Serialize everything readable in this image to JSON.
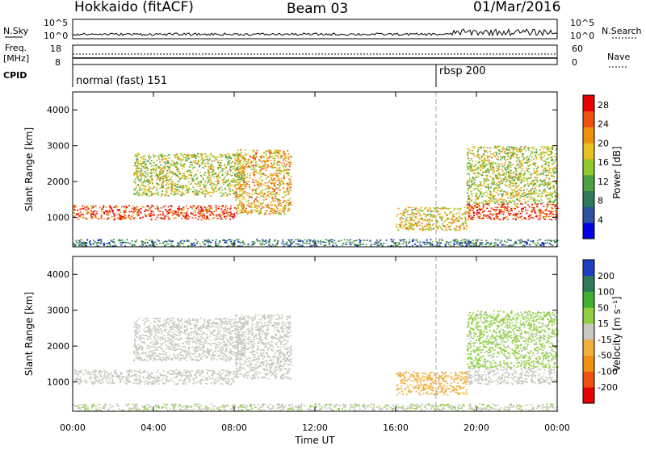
{
  "header": {
    "left": "Hokkaido (fitACF)",
    "center": "Beam 03",
    "right": "01/Mar/2016"
  },
  "top_panels": {
    "nsky_label": "N.Sky",
    "nsearch_label": "N.Search",
    "log_ticks_left": [
      "10^5",
      "10^0"
    ],
    "log_ticks_right": [
      "10^5",
      "10^0"
    ],
    "freq_label_line1": "Freq.",
    "freq_label_line2": "[MHz]",
    "freq_ticks": [
      "18",
      "8"
    ],
    "nave_label": "Nave",
    "nave_ticks": [
      "60",
      "0"
    ],
    "cpid_label": "CPID",
    "cpid_modes": [
      {
        "label": "normal (fast) 151",
        "start_hour": 0
      },
      {
        "label": "rbsp 200",
        "start_hour": 18
      }
    ]
  },
  "chart_data": [
    {
      "type": "heatmap",
      "ylabel": "Slant Range [km]",
      "xlabel": "Time UT",
      "xlim": [
        0,
        24
      ],
      "ylim": [
        180,
        4500
      ],
      "x_ticks": [
        "00:00",
        "04:00",
        "08:00",
        "12:00",
        "16:00",
        "20:00",
        "00:00"
      ],
      "y_ticks": [
        "1000",
        "2000",
        "3000",
        "4000"
      ],
      "colorbar": {
        "label": "Power [dB]",
        "range": [
          0,
          30
        ],
        "ticks": [
          "28",
          "24",
          "20",
          "16",
          "12",
          "8",
          "4"
        ],
        "colors": [
          "#0000e0",
          "#3050a0",
          "#2f7a5a",
          "#4fa040",
          "#90c830",
          "#e8c020",
          "#f09010",
          "#f05010",
          "#e80000"
        ]
      },
      "features": [
        {
          "x": [
            0.0,
            8.0
          ],
          "y": [
            950,
            1350
          ],
          "value": 26
        },
        {
          "x": [
            8.0,
            10.8
          ],
          "y": [
            1100,
            2900
          ],
          "value": 20
        },
        {
          "x": [
            3.0,
            8.5
          ],
          "y": [
            1600,
            2800
          ],
          "value": 16
        },
        {
          "x": [
            16.0,
            19.5
          ],
          "y": [
            650,
            1300
          ],
          "value": 18
        },
        {
          "x": [
            19.5,
            24.0
          ],
          "y": [
            950,
            1400
          ],
          "value": 26
        },
        {
          "x": [
            19.5,
            24.0
          ],
          "y": [
            1400,
            3000
          ],
          "value": 16
        },
        {
          "x": [
            0.0,
            24.0
          ],
          "y": [
            200,
            400
          ],
          "value": 8
        }
      ]
    },
    {
      "type": "heatmap",
      "ylabel": "Slant Range [km]",
      "xlabel": "Time UT",
      "xlim": [
        0,
        24
      ],
      "ylim": [
        180,
        4500
      ],
      "x_ticks": [
        "00:00",
        "04:00",
        "08:00",
        "12:00",
        "16:00",
        "20:00",
        "00:00"
      ],
      "y_ticks": [
        "1000",
        "2000",
        "3000",
        "4000"
      ],
      "colorbar": {
        "label": "Velocity [m s⁻¹]",
        "range": [
          -250,
          250
        ],
        "ticks": [
          "200",
          "100",
          "50",
          "15",
          "-15",
          "-50",
          "-100",
          "-200"
        ],
        "colors": [
          "#e80000",
          "#f05010",
          "#f09010",
          "#f0b040",
          "#c8c8c0",
          "#90d040",
          "#40b030",
          "#2f7a5a",
          "#2040c0"
        ]
      },
      "features": [
        {
          "x": [
            0.0,
            8.0
          ],
          "y": [
            950,
            1350
          ],
          "value": 0
        },
        {
          "x": [
            8.0,
            10.8
          ],
          "y": [
            1100,
            2900
          ],
          "value": 0
        },
        {
          "x": [
            3.0,
            8.5
          ],
          "y": [
            1600,
            2800
          ],
          "value": 0
        },
        {
          "x": [
            16.0,
            19.5
          ],
          "y": [
            650,
            1300
          ],
          "value": -60
        },
        {
          "x": [
            19.5,
            24.0
          ],
          "y": [
            950,
            1400
          ],
          "value": 0
        },
        {
          "x": [
            19.5,
            24.0
          ],
          "y": [
            1400,
            3000
          ],
          "value": 40
        },
        {
          "x": [
            0.0,
            24.0
          ],
          "y": [
            200,
            400
          ],
          "value": 20
        }
      ]
    }
  ]
}
